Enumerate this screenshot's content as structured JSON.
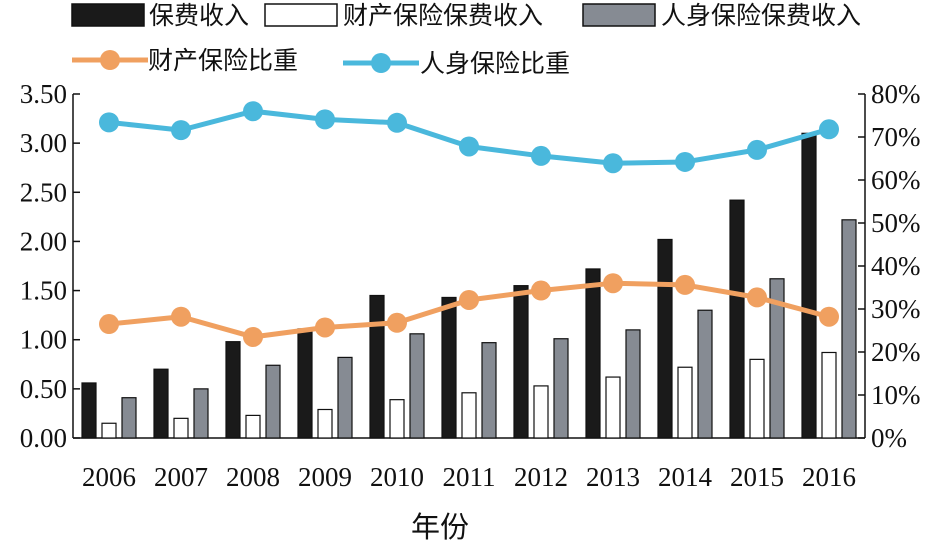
{
  "chart_data": {
    "type": "bar",
    "title": "",
    "xlabel": "年份",
    "ylabel": "",
    "y2label": "",
    "categories": [
      "2006",
      "2007",
      "2008",
      "2009",
      "2010",
      "2011",
      "2012",
      "2013",
      "2014",
      "2015",
      "2016"
    ],
    "ylim": [
      0,
      3.5
    ],
    "y_ticks": [
      "0.00",
      "0.50",
      "1.00",
      "1.50",
      "2.00",
      "2.50",
      "3.00",
      "3.50"
    ],
    "y2lim": [
      0,
      80
    ],
    "y2_ticks": [
      "0%",
      "10%",
      "20%",
      "30%",
      "40%",
      "50%",
      "60%",
      "70%",
      "80%"
    ],
    "grid": false,
    "legend_position": "top",
    "bar_series": [
      {
        "name": "保费收入",
        "color": "#1a1a1a",
        "values": [
          0.56,
          0.7,
          0.98,
          1.11,
          1.45,
          1.43,
          1.55,
          1.72,
          2.02,
          2.42,
          3.1
        ]
      },
      {
        "name": "财产保险保费收入",
        "color": "#ffffff",
        "values": [
          0.15,
          0.2,
          0.23,
          0.29,
          0.39,
          0.46,
          0.53,
          0.62,
          0.72,
          0.8,
          0.87
        ]
      },
      {
        "name": "人身保险保费收入",
        "color": "#868b93",
        "values": [
          0.41,
          0.5,
          0.74,
          0.82,
          1.06,
          0.97,
          1.01,
          1.1,
          1.3,
          1.62,
          2.22
        ]
      }
    ],
    "line_series": [
      {
        "name": "财产保险比重",
        "color": "#f0a060",
        "axis": "right",
        "values": [
          26.5,
          28.2,
          23.5,
          25.7,
          26.8,
          32.1,
          34.3,
          36.0,
          35.6,
          32.7,
          28.2
        ]
      },
      {
        "name": "人身保险比重",
        "color": "#4ab8dc",
        "axis": "right",
        "values": [
          73.4,
          71.6,
          76.0,
          74.1,
          73.3,
          67.8,
          65.6,
          63.9,
          64.2,
          67.0,
          71.8
        ]
      }
    ]
  }
}
